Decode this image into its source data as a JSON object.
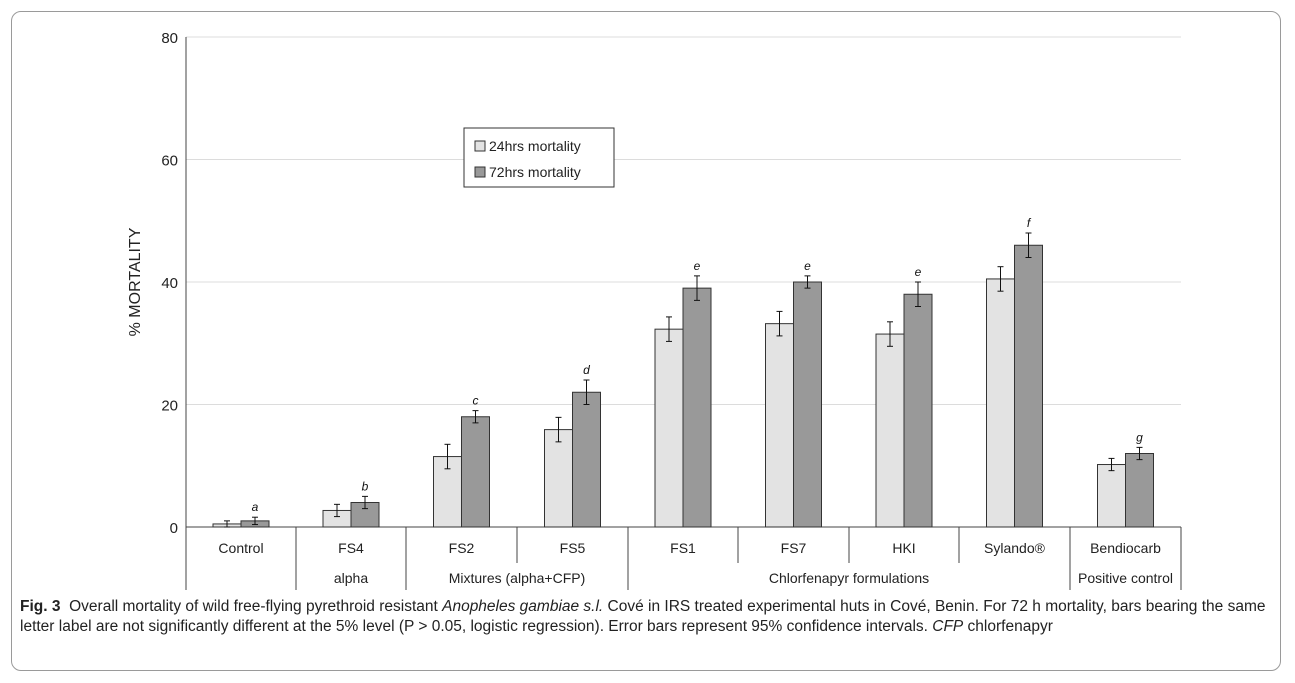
{
  "chart_data": {
    "type": "bar",
    "ylabel": "% MORTALITY",
    "ylim": [
      0,
      80
    ],
    "yticks": [
      0,
      20,
      40,
      60,
      80
    ],
    "grid": true,
    "legend_position": "top-center",
    "categories": [
      "Control",
      "FS4",
      "FS2",
      "FS5",
      "FS1",
      "FS7",
      "HKI",
      "Sylando®",
      "Bendiocarb"
    ],
    "groups": [
      {
        "label": "",
        "span": 1
      },
      {
        "label": "alpha",
        "span": 1
      },
      {
        "label": "Mixtures (alpha+CFP)",
        "span": 2
      },
      {
        "label": "Chlorfenapyr formulations",
        "span": 4
      },
      {
        "label": "Positive control",
        "span": 1
      }
    ],
    "series": [
      {
        "name": "24hrs mortality",
        "color": "#e3e3e3",
        "values": [
          0.5,
          2.7,
          11.5,
          15.9,
          32.3,
          33.2,
          31.5,
          40.5,
          10.2
        ],
        "err": [
          0.5,
          1.0,
          2.0,
          2.0,
          2.0,
          2.0,
          2.0,
          2.0,
          1.0
        ],
        "letters": [
          "",
          "",
          "",
          "",
          "",
          "",
          "",
          "",
          ""
        ]
      },
      {
        "name": "72hrs mortality",
        "color": "#999999",
        "values": [
          1.0,
          4.0,
          18.0,
          22.0,
          39.0,
          40.0,
          38.0,
          46.0,
          12.0
        ],
        "err": [
          0.6,
          1.0,
          1.0,
          2.0,
          2.0,
          1.0,
          2.0,
          2.0,
          1.0
        ],
        "letters": [
          "a",
          "b",
          "c",
          "d",
          "e",
          "e",
          "e",
          "f",
          "g"
        ]
      }
    ]
  },
  "caption": {
    "fig_label": "Fig. 3",
    "text_1": "Overall mortality of wild free-flying pyrethroid resistant ",
    "species": "Anopheles gambiae s.l.",
    "text_2": " Cové in IRS treated experimental huts in Cové, Benin. For 72 h mortality, bars bearing the same letter label are not significantly different at the 5% level (P > 0.05, logistic regression). Error bars represent 95% confidence intervals. ",
    "abbr": "CFP",
    "text_3": " chlorfenapyr"
  }
}
